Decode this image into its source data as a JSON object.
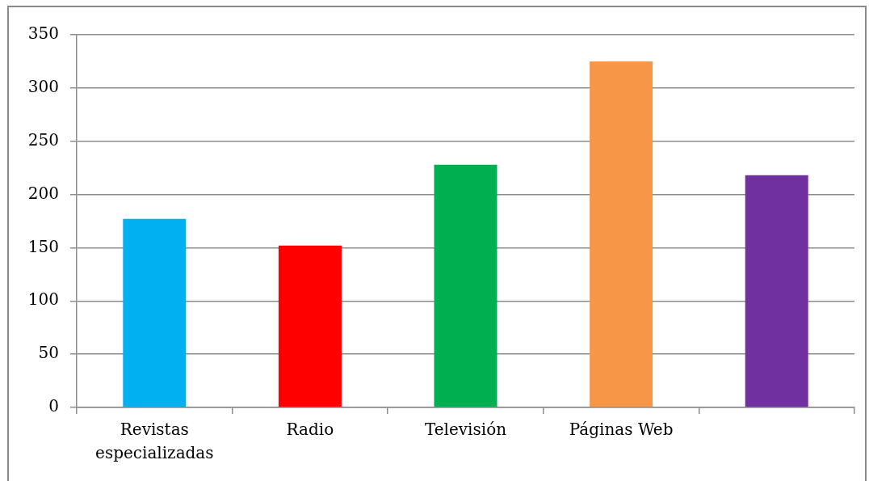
{
  "chart_data": {
    "type": "bar",
    "categories": [
      "Revistas especializadas",
      "Radio",
      "Televisión",
      "Páginas Web",
      null
    ],
    "values": [
      177,
      152,
      228,
      325,
      218
    ],
    "colors": [
      "#00b0f0",
      "#ff0000",
      "#00b050",
      "#f79646",
      "#7030a0"
    ],
    "ylim": [
      0,
      350
    ],
    "yticks": [
      0,
      50,
      100,
      150,
      200,
      250,
      300,
      350
    ],
    "grid": "y"
  }
}
